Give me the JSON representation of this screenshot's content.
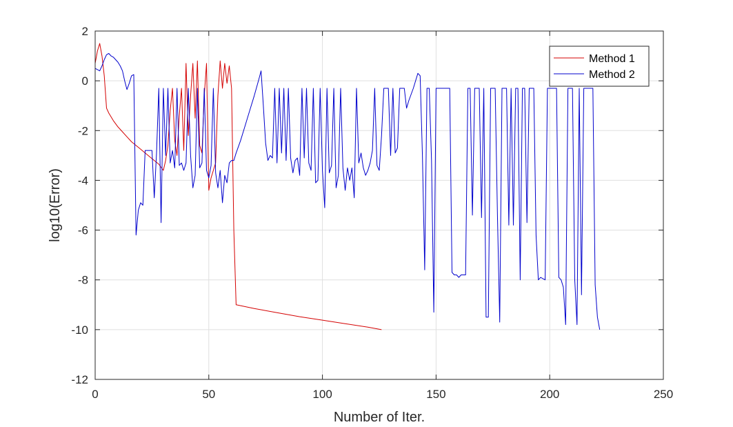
{
  "chart_data": {
    "type": "line",
    "xlabel": "Number of Iter.",
    "ylabel": "log10(Error)",
    "xlim": [
      0,
      250
    ],
    "ylim": [
      -12,
      2
    ],
    "x_ticks": [
      0,
      50,
      100,
      150,
      200,
      250
    ],
    "y_ticks": [
      -12,
      -10,
      -8,
      -6,
      -4,
      -2,
      0,
      2
    ],
    "x_tick_labels": [
      "0",
      "50",
      "100",
      "150",
      "200",
      "250"
    ],
    "y_tick_labels": [
      "-12",
      "-10",
      "-8",
      "-6",
      "-4",
      "-2",
      "0",
      "2"
    ],
    "grid": true,
    "legend_position": "top-right",
    "series": [
      {
        "name": "Method 1",
        "color": "#d40000",
        "points": [
          [
            0,
            0.7
          ],
          [
            1,
            1.2
          ],
          [
            2,
            1.5
          ],
          [
            3,
            1.0
          ],
          [
            4,
            0.2
          ],
          [
            5,
            -1.1
          ],
          [
            6,
            -1.3
          ],
          [
            8,
            -1.6
          ],
          [
            10,
            -1.85
          ],
          [
            12,
            -2.05
          ],
          [
            14,
            -2.25
          ],
          [
            16,
            -2.45
          ],
          [
            18,
            -2.6
          ],
          [
            20,
            -2.75
          ],
          [
            22,
            -2.9
          ],
          [
            24,
            -3.05
          ],
          [
            26,
            -3.2
          ],
          [
            28,
            -3.35
          ],
          [
            30,
            -3.6
          ],
          [
            31,
            -3.2
          ],
          [
            32,
            -2.6
          ],
          [
            33,
            -1.2
          ],
          [
            34,
            -0.3
          ],
          [
            35,
            -2.4
          ],
          [
            36,
            -3.0
          ],
          [
            37,
            -1.4
          ],
          [
            38,
            -0.3
          ],
          [
            39,
            -2.8
          ],
          [
            40,
            0.7
          ],
          [
            41,
            -2.2
          ],
          [
            42,
            -0.6
          ],
          [
            43,
            0.7
          ],
          [
            44,
            -1.5
          ],
          [
            45,
            0.8
          ],
          [
            46,
            -2.6
          ],
          [
            47,
            -2.9
          ],
          [
            48,
            -0.6
          ],
          [
            49,
            0.7
          ],
          [
            50,
            -4.4
          ],
          [
            51,
            -3.9
          ],
          [
            52,
            -3.6
          ],
          [
            53,
            -3.3
          ],
          [
            54,
            -0.6
          ],
          [
            55,
            0.8
          ],
          [
            56,
            -0.3
          ],
          [
            57,
            0.7
          ],
          [
            58,
            -0.1
          ],
          [
            59,
            0.6
          ],
          [
            60,
            -0.3
          ],
          [
            61,
            -6.0
          ],
          [
            62,
            -9.0
          ],
          [
            70,
            -9.15
          ],
          [
            80,
            -9.32
          ],
          [
            90,
            -9.48
          ],
          [
            100,
            -9.62
          ],
          [
            110,
            -9.76
          ],
          [
            120,
            -9.9
          ],
          [
            126,
            -10.0
          ]
        ]
      },
      {
        "name": "Method 2",
        "color": "#0000cc",
        "points": [
          [
            0,
            0.5
          ],
          [
            1,
            0.45
          ],
          [
            2,
            0.4
          ],
          [
            3,
            0.6
          ],
          [
            4,
            0.85
          ],
          [
            5,
            1.05
          ],
          [
            6,
            1.1
          ],
          [
            7,
            1.0
          ],
          [
            8,
            0.95
          ],
          [
            9,
            0.85
          ],
          [
            10,
            0.75
          ],
          [
            11,
            0.6
          ],
          [
            12,
            0.4
          ],
          [
            13,
            0.0
          ],
          [
            14,
            -0.35
          ],
          [
            15,
            -0.1
          ],
          [
            16,
            0.2
          ],
          [
            17,
            0.25
          ],
          [
            18,
            -6.2
          ],
          [
            19,
            -5.2
          ],
          [
            20,
            -4.9
          ],
          [
            21,
            -5.0
          ],
          [
            22,
            -2.8
          ],
          [
            24,
            -2.8
          ],
          [
            25,
            -2.8
          ],
          [
            26,
            -4.7
          ],
          [
            27,
            -2.9
          ],
          [
            28,
            -0.3
          ],
          [
            29,
            -5.7
          ],
          [
            30,
            -0.3
          ],
          [
            31,
            -3.0
          ],
          [
            32,
            -0.3
          ],
          [
            33,
            -3.3
          ],
          [
            34,
            -2.8
          ],
          [
            35,
            -3.5
          ],
          [
            36,
            -0.3
          ],
          [
            37,
            -3.4
          ],
          [
            38,
            -3.3
          ],
          [
            39,
            -3.6
          ],
          [
            40,
            -3.3
          ],
          [
            41,
            -0.3
          ],
          [
            42,
            -3.0
          ],
          [
            43,
            -4.3
          ],
          [
            44,
            -3.8
          ],
          [
            45,
            -0.3
          ],
          [
            46,
            -3.5
          ],
          [
            47,
            -3.3
          ],
          [
            48,
            -0.3
          ],
          [
            49,
            -3.6
          ],
          [
            50,
            -3.9
          ],
          [
            51,
            -3.4
          ],
          [
            52,
            -0.3
          ],
          [
            53,
            -3.7
          ],
          [
            54,
            -4.3
          ],
          [
            55,
            -3.6
          ],
          [
            56,
            -4.9
          ],
          [
            57,
            -3.8
          ],
          [
            58,
            -4.1
          ],
          [
            59,
            -3.3
          ],
          [
            60,
            -3.2
          ],
          [
            61,
            -3.2
          ],
          [
            62,
            -2.9
          ],
          [
            64,
            -2.4
          ],
          [
            66,
            -1.8
          ],
          [
            68,
            -1.2
          ],
          [
            70,
            -0.6
          ],
          [
            72,
            0.05
          ],
          [
            73,
            0.4
          ],
          [
            74,
            -1.0
          ],
          [
            75,
            -2.5
          ],
          [
            76,
            -3.2
          ],
          [
            77,
            -3.0
          ],
          [
            78,
            -3.1
          ],
          [
            79,
            -0.3
          ],
          [
            80,
            -3.3
          ],
          [
            81,
            -0.3
          ],
          [
            82,
            -2.9
          ],
          [
            83,
            -0.3
          ],
          [
            84,
            -3.2
          ],
          [
            85,
            -0.3
          ],
          [
            86,
            -3.1
          ],
          [
            87,
            -3.7
          ],
          [
            88,
            -3.2
          ],
          [
            89,
            -3.1
          ],
          [
            90,
            -3.8
          ],
          [
            91,
            -0.3
          ],
          [
            92,
            -3.1
          ],
          [
            93,
            -0.3
          ],
          [
            94,
            -3.3
          ],
          [
            95,
            -3.6
          ],
          [
            96,
            -0.3
          ],
          [
            97,
            -4.1
          ],
          [
            98,
            -4.0
          ],
          [
            99,
            -0.3
          ],
          [
            100,
            -3.6
          ],
          [
            101,
            -5.1
          ],
          [
            102,
            -0.3
          ],
          [
            103,
            -3.7
          ],
          [
            104,
            -3.4
          ],
          [
            105,
            -0.3
          ],
          [
            106,
            -4.3
          ],
          [
            107,
            -3.8
          ],
          [
            108,
            -0.3
          ],
          [
            109,
            -3.5
          ],
          [
            110,
            -4.4
          ],
          [
            111,
            -3.5
          ],
          [
            112,
            -4.0
          ],
          [
            113,
            -3.5
          ],
          [
            114,
            -4.7
          ],
          [
            115,
            -0.3
          ],
          [
            116,
            -3.3
          ],
          [
            117,
            -2.9
          ],
          [
            118,
            -3.5
          ],
          [
            119,
            -3.8
          ],
          [
            120,
            -3.6
          ],
          [
            121,
            -3.3
          ],
          [
            122,
            -2.8
          ],
          [
            123,
            -0.3
          ],
          [
            124,
            -3.4
          ],
          [
            125,
            -3.6
          ],
          [
            126,
            -2.2
          ],
          [
            127,
            -0.3
          ],
          [
            128,
            -0.3
          ],
          [
            129,
            -0.3
          ],
          [
            130,
            -3.0
          ],
          [
            131,
            -0.3
          ],
          [
            132,
            -2.9
          ],
          [
            133,
            -2.7
          ],
          [
            134,
            -0.3
          ],
          [
            135,
            -0.3
          ],
          [
            136,
            -0.3
          ],
          [
            137,
            -1.1
          ],
          [
            138,
            -0.8
          ],
          [
            140,
            -0.3
          ],
          [
            141,
            0.0
          ],
          [
            142,
            0.3
          ],
          [
            143,
            0.2
          ],
          [
            144,
            -3.0
          ],
          [
            145,
            -7.6
          ],
          [
            146,
            -0.3
          ],
          [
            147,
            -0.3
          ],
          [
            148,
            -3.2
          ],
          [
            149,
            -9.3
          ],
          [
            150,
            -0.3
          ],
          [
            151,
            -0.3
          ],
          [
            152,
            -0.3
          ],
          [
            153,
            -0.3
          ],
          [
            154,
            -0.3
          ],
          [
            155,
            -0.3
          ],
          [
            156,
            -0.3
          ],
          [
            157,
            -7.7
          ],
          [
            158,
            -7.8
          ],
          [
            159,
            -7.8
          ],
          [
            160,
            -7.9
          ],
          [
            161,
            -7.8
          ],
          [
            162,
            -7.8
          ],
          [
            163,
            -7.8
          ],
          [
            164,
            -0.3
          ],
          [
            165,
            -0.3
          ],
          [
            166,
            -5.4
          ],
          [
            167,
            -0.3
          ],
          [
            168,
            -0.3
          ],
          [
            169,
            -0.3
          ],
          [
            170,
            -5.5
          ],
          [
            171,
            -0.3
          ],
          [
            172,
            -9.5
          ],
          [
            173,
            -9.5
          ],
          [
            174,
            -0.3
          ],
          [
            175,
            -0.3
          ],
          [
            176,
            -0.3
          ],
          [
            177,
            -5.4
          ],
          [
            178,
            -9.7
          ],
          [
            179,
            -0.3
          ],
          [
            180,
            -0.3
          ],
          [
            181,
            -0.3
          ],
          [
            182,
            -5.8
          ],
          [
            183,
            -0.3
          ],
          [
            184,
            -5.8
          ],
          [
            185,
            -0.3
          ],
          [
            186,
            -0.3
          ],
          [
            187,
            -8.0
          ],
          [
            188,
            -0.3
          ],
          [
            189,
            -0.3
          ],
          [
            190,
            -5.7
          ],
          [
            191,
            -0.3
          ],
          [
            192,
            -0.3
          ],
          [
            193,
            -0.3
          ],
          [
            194,
            -6.2
          ],
          [
            195,
            -8.0
          ],
          [
            196,
            -7.9
          ],
          [
            197,
            -7.95
          ],
          [
            198,
            -8.0
          ],
          [
            199,
            -0.3
          ],
          [
            200,
            -0.3
          ],
          [
            201,
            -0.3
          ],
          [
            202,
            -0.3
          ],
          [
            203,
            -0.3
          ],
          [
            204,
            -7.9
          ],
          [
            205,
            -8.0
          ],
          [
            206,
            -8.3
          ],
          [
            207,
            -9.8
          ],
          [
            208,
            -0.3
          ],
          [
            209,
            -0.3
          ],
          [
            210,
            -0.3
          ],
          [
            211,
            -8.0
          ],
          [
            212,
            -9.8
          ],
          [
            213,
            -0.3
          ],
          [
            214,
            -8.6
          ],
          [
            215,
            -0.3
          ],
          [
            216,
            -0.3
          ],
          [
            217,
            -0.3
          ],
          [
            218,
            -0.3
          ],
          [
            219,
            -0.3
          ],
          [
            220,
            -8.2
          ],
          [
            221,
            -9.5
          ],
          [
            222,
            -10.0
          ]
        ]
      }
    ]
  }
}
